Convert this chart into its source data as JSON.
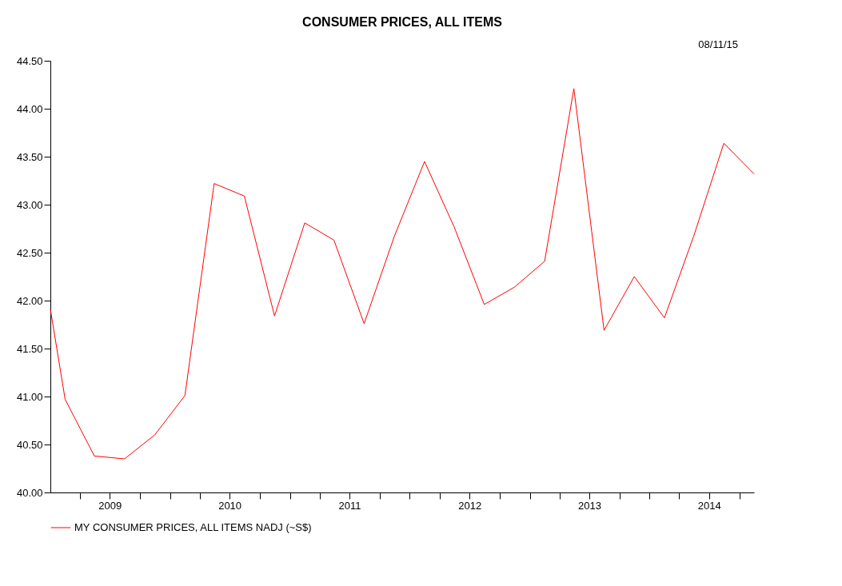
{
  "chart_data": {
    "type": "line",
    "title": "CONSUMER PRICES, ALL ITEMS",
    "annotations": [
      "08/11/15"
    ],
    "x": [
      "2009-01-01",
      "2009-02-15",
      "2009-05-15",
      "2009-08-15",
      "2009-11-15",
      "2010-02-15",
      "2010-05-15",
      "2010-08-15",
      "2010-11-15",
      "2011-02-15",
      "2011-05-15",
      "2011-08-15",
      "2011-11-15",
      "2012-02-15",
      "2012-05-15",
      "2012-08-15",
      "2012-11-15",
      "2013-02-15",
      "2013-05-15",
      "2013-08-15",
      "2013-11-15",
      "2014-02-15",
      "2014-05-15",
      "2014-08-15",
      "2014-11-15"
    ],
    "series": [
      {
        "name": "MY CONSUMER PRICES, ALL ITEMS NADJ (~S$)",
        "color": "#ff0000",
        "values": [
          41.91,
          40.97,
          40.38,
          40.35,
          40.6,
          41.01,
          43.22,
          43.09,
          41.84,
          42.81,
          42.63,
          41.76,
          42.67,
          43.45,
          42.77,
          41.96,
          42.14,
          42.41,
          44.21,
          41.69,
          42.25,
          41.82,
          42.67,
          43.64,
          43.32
        ]
      }
    ],
    "xlim": [
      "2009-01-01",
      "2014-11-15"
    ],
    "xticks": [
      {
        "value": "2009-04-01",
        "label": null
      },
      {
        "value": "2009-07-01",
        "label": "2009"
      },
      {
        "value": "2009-10-01",
        "label": null
      },
      {
        "value": "2010-01-01",
        "label": null
      },
      {
        "value": "2010-04-01",
        "label": null
      },
      {
        "value": "2010-07-01",
        "label": "2010"
      },
      {
        "value": "2010-10-01",
        "label": null
      },
      {
        "value": "2011-01-01",
        "label": null
      },
      {
        "value": "2011-04-01",
        "label": null
      },
      {
        "value": "2011-07-01",
        "label": "2011"
      },
      {
        "value": "2011-10-01",
        "label": null
      },
      {
        "value": "2012-01-01",
        "label": null
      },
      {
        "value": "2012-04-01",
        "label": null
      },
      {
        "value": "2012-07-01",
        "label": "2012"
      },
      {
        "value": "2012-10-01",
        "label": null
      },
      {
        "value": "2013-01-01",
        "label": null
      },
      {
        "value": "2013-04-01",
        "label": null
      },
      {
        "value": "2013-07-01",
        "label": "2013"
      },
      {
        "value": "2013-10-01",
        "label": null
      },
      {
        "value": "2014-01-01",
        "label": null
      },
      {
        "value": "2014-04-01",
        "label": null
      },
      {
        "value": "2014-07-01",
        "label": "2014"
      },
      {
        "value": "2014-10-01",
        "label": null
      }
    ],
    "ylim": [
      40,
      44.5
    ],
    "yticks": [
      {
        "value": 40,
        "label": "40.00"
      },
      {
        "value": 40.5,
        "label": "40.50"
      },
      {
        "value": 41,
        "label": "41.00"
      },
      {
        "value": 41.5,
        "label": "41.50"
      },
      {
        "value": 42,
        "label": "42.00"
      },
      {
        "value": 42.5,
        "label": "42.50"
      },
      {
        "value": 43,
        "label": "43.00"
      },
      {
        "value": 43.5,
        "label": "43.50"
      },
      {
        "value": 44,
        "label": "44.00"
      },
      {
        "value": 44.5,
        "label": "44.50"
      }
    ],
    "legend": "bottom left",
    "grid": false,
    "marker": "none",
    "line_style": "solid"
  }
}
